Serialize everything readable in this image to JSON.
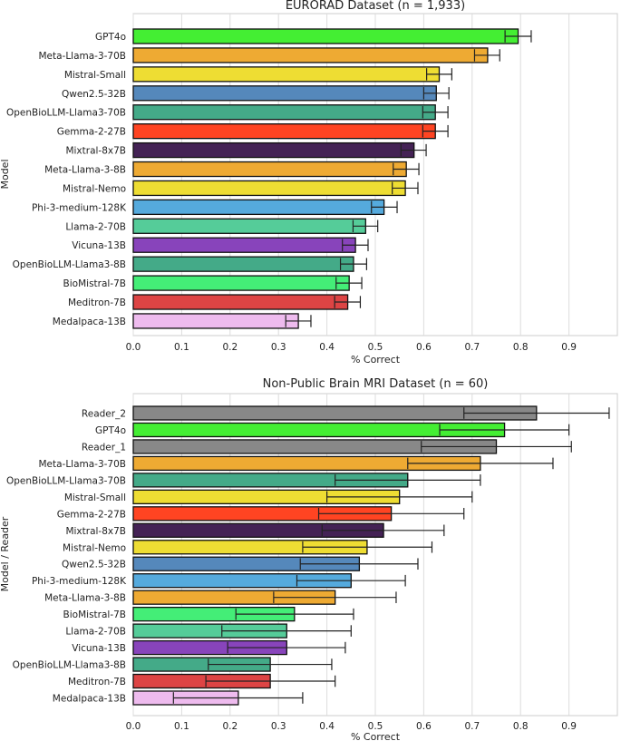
{
  "chart_data": [
    {
      "type": "bar",
      "orientation": "horizontal",
      "title": "EURORAD Dataset (n = 1,933)",
      "xlabel": "% Correct",
      "ylabel": "Model",
      "xlim": [
        0,
        1.0
      ],
      "xticks": [
        "0.0",
        "0.1",
        "0.2",
        "0.3",
        "0.4",
        "0.5",
        "0.6",
        "0.7",
        "0.8",
        "0.9"
      ],
      "grid": true,
      "categories": [
        "GPT4o",
        "Meta-Llama-3-70B",
        "Mistral-Small",
        "Qwen2.5-32B",
        "OpenBioLLM-Llama3-70B",
        "Gemma-2-27B",
        "Mixtral-8x7B",
        "Meta-Llama-3-8B",
        "Mistral-Nemo",
        "Phi-3-medium-128K",
        "Llama-2-70B",
        "Vicuna-13B",
        "OpenBioLLM-Llama3-8B",
        "BioMistral-7B",
        "Meditron-7B",
        "Medalpaca-13B"
      ],
      "values": [
        0.795,
        0.732,
        0.632,
        0.626,
        0.624,
        0.624,
        0.58,
        0.564,
        0.562,
        0.518,
        0.48,
        0.459,
        0.455,
        0.446,
        0.443,
        0.341
      ],
      "err_low": [
        0.768,
        0.705,
        0.606,
        0.6,
        0.598,
        0.598,
        0.553,
        0.537,
        0.535,
        0.492,
        0.454,
        0.432,
        0.428,
        0.419,
        0.416,
        0.315
      ],
      "err_high": [
        0.822,
        0.757,
        0.658,
        0.652,
        0.65,
        0.65,
        0.605,
        0.59,
        0.588,
        0.545,
        0.505,
        0.485,
        0.482,
        0.472,
        0.469,
        0.367
      ],
      "colors": [
        "#44ee33",
        "#eeaa33",
        "#eedd33",
        "#5588bb",
        "#44aa88",
        "#ff4422",
        "#442255",
        "#eeaa33",
        "#eedd33",
        "#55aadd",
        "#55cc99",
        "#8844bb",
        "#44aa88",
        "#44ee77",
        "#dd4444",
        "#eebbee"
      ]
    },
    {
      "type": "bar",
      "orientation": "horizontal",
      "title": "Non-Public Brain MRI Dataset (n = 60)",
      "xlabel": "% Correct",
      "ylabel": "Model / Reader",
      "xlim": [
        0,
        1.0
      ],
      "xticks": [
        "0.0",
        "0.1",
        "0.2",
        "0.3",
        "0.4",
        "0.5",
        "0.6",
        "0.7",
        "0.8",
        "0.9"
      ],
      "grid": true,
      "categories": [
        "Reader_2",
        "GPT4o",
        "Reader_1",
        "Meta-Llama-3-70B",
        "OpenBioLLM-Llama3-70B",
        "Mistral-Small",
        "Gemma-2-27B",
        "Mixtral-8x7B",
        "Mistral-Nemo",
        "Qwen2.5-32B",
        "Phi-3-medium-128K",
        "Meta-Llama-3-8B",
        "BioMistral-7B",
        "Llama-2-70B",
        "Vicuna-13B",
        "OpenBioLLM-Llama3-8B",
        "Meditron-7B",
        "Medalpaca-13B"
      ],
      "values": [
        0.833,
        0.767,
        0.75,
        0.717,
        0.567,
        0.55,
        0.533,
        0.517,
        0.483,
        0.467,
        0.45,
        0.417,
        0.333,
        0.317,
        0.317,
        0.283,
        0.283,
        0.217
      ],
      "err_low": [
        0.683,
        0.633,
        0.595,
        0.567,
        0.417,
        0.4,
        0.383,
        0.39,
        0.35,
        0.345,
        0.338,
        0.29,
        0.212,
        0.183,
        0.195,
        0.155,
        0.15,
        0.083
      ],
      "err_high": [
        0.983,
        0.9,
        0.905,
        0.867,
        0.717,
        0.7,
        0.683,
        0.642,
        0.617,
        0.588,
        0.562,
        0.543,
        0.455,
        0.45,
        0.438,
        0.41,
        0.417,
        0.35
      ],
      "colors": [
        "#888888",
        "#44ee33",
        "#888888",
        "#eeaa33",
        "#44aa88",
        "#eedd33",
        "#ff4422",
        "#442255",
        "#eedd33",
        "#5588bb",
        "#55aadd",
        "#eeaa33",
        "#44ee77",
        "#55cc99",
        "#8844bb",
        "#44aa88",
        "#dd4444",
        "#eebbee"
      ]
    }
  ]
}
